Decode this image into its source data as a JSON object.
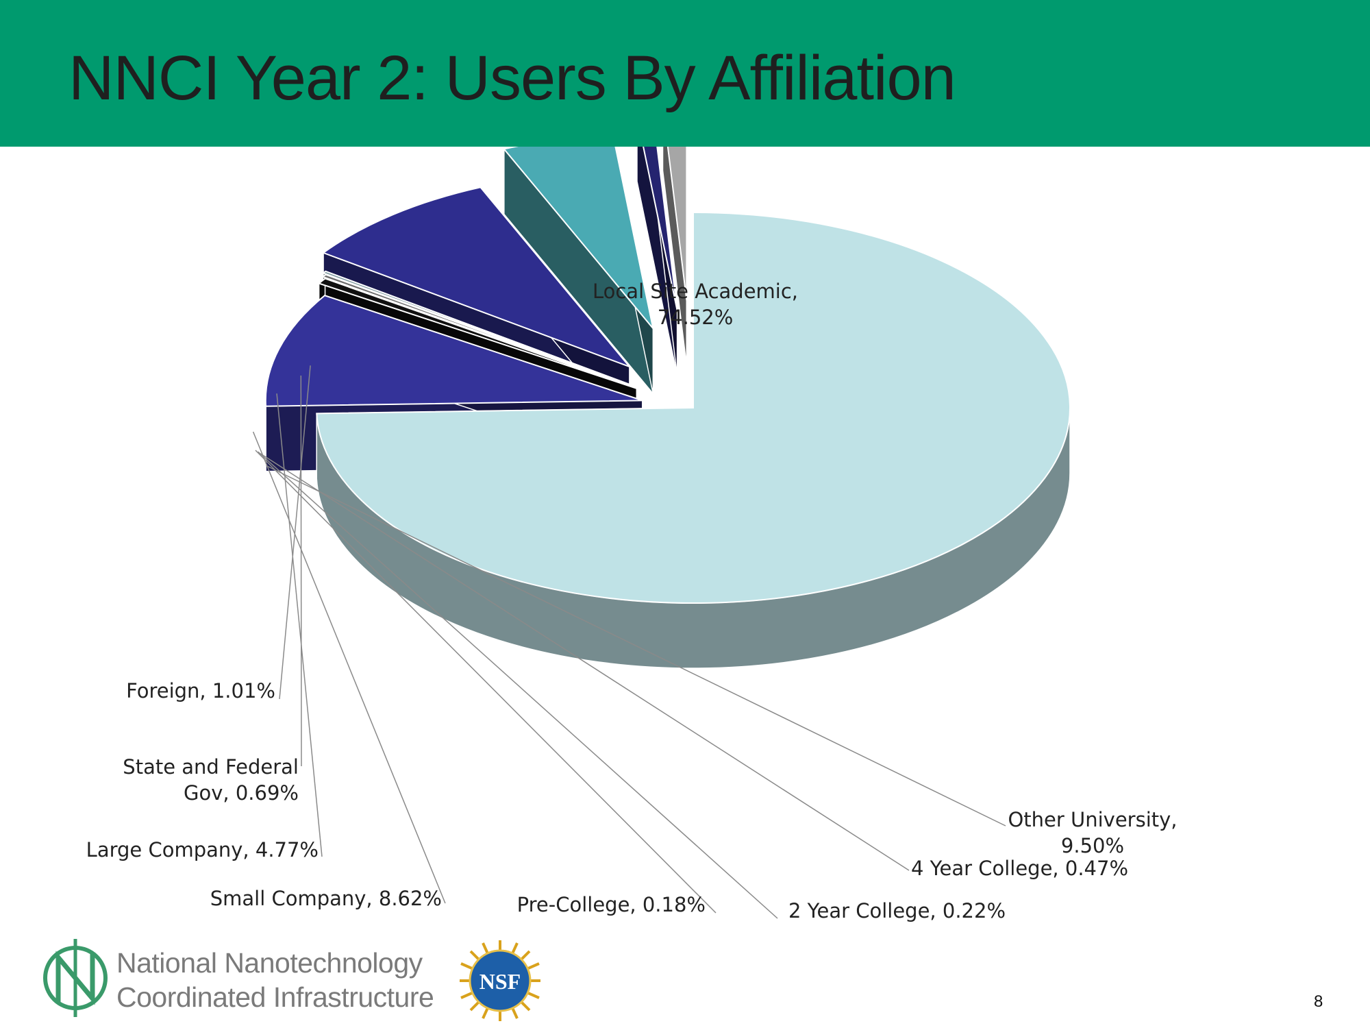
{
  "slide": {
    "title": "NNCI Year 2: Users By Affiliation",
    "page_number": "8"
  },
  "logo": {
    "line1": "National Nanotechnology",
    "line2": "Coordinated Infrastructure",
    "nsf_text": "NSF"
  },
  "colors": {
    "header": "#009a6e",
    "logo_green": "#3a9a6a"
  },
  "chart_data": {
    "type": "pie",
    "style": "3d-exploded",
    "title": "",
    "slices": [
      {
        "label": "Local Site Academic",
        "value": 74.52,
        "display": "Local Site Academic,|74.52%",
        "color": "#bfe2e6"
      },
      {
        "label": "Other University",
        "value": 9.5,
        "display": "Other University,|9.50%",
        "color": "#343399"
      },
      {
        "label": "4 Year College",
        "value": 0.47,
        "display": "4 Year College, 0.47%",
        "color": "#111111"
      },
      {
        "label": "2 Year College",
        "value": 0.22,
        "display": "2 Year College, 0.22%",
        "color": "#6d6d6d"
      },
      {
        "label": "Pre-College",
        "value": 0.18,
        "display": "Pre-College, 0.18%",
        "color": "#7f9aa0"
      },
      {
        "label": "Small Company",
        "value": 8.62,
        "display": "Small Company, 8.62%",
        "color": "#2e2d8e"
      },
      {
        "label": "Large Company",
        "value": 4.77,
        "display": "Large Company, 4.77%",
        "color": "#4aaab3"
      },
      {
        "label": "State and Federal Gov",
        "value": 0.69,
        "display": "State and Federal|Gov, 0.69%",
        "color": "#252470"
      },
      {
        "label": "Foreign",
        "value": 1.01,
        "display": "Foreign, 1.01%",
        "color": "#a6a6a6"
      }
    ]
  }
}
